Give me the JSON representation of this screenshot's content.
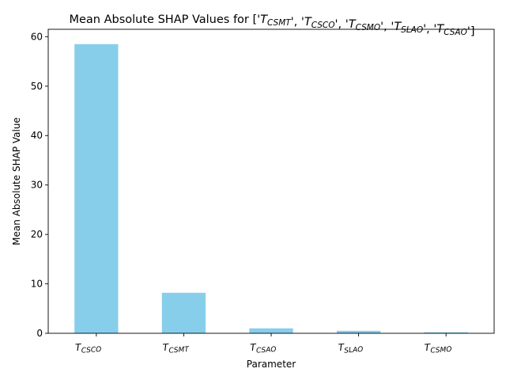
{
  "chart_data": {
    "type": "bar",
    "title": "Mean Absolute SHAP Values for ['T_CSMT', 'T_CSCO', 'T_CSMO', 'T_SLAO', 'T_CSAO']",
    "title_parts": [
      {
        "t": "Mean Absolute SHAP Values for ['"
      },
      {
        "t": "T",
        "it": true
      },
      {
        "t": "CSMT",
        "sub": true
      },
      {
        "t": "', '"
      },
      {
        "t": "T",
        "it": true
      },
      {
        "t": "CSCO",
        "sub": true
      },
      {
        "t": "', '"
      },
      {
        "t": "T",
        "it": true
      },
      {
        "t": "CSMO",
        "sub": true
      },
      {
        "t": "', '"
      },
      {
        "t": "T",
        "it": true
      },
      {
        "t": "SLAO",
        "sub": true
      },
      {
        "t": "', '"
      },
      {
        "t": "T",
        "it": true
      },
      {
        "t": "CSAO",
        "sub": true
      },
      {
        "t": "']"
      }
    ],
    "xlabel": "Parameter",
    "ylabel": "Mean Absolute SHAP Value",
    "categories": [
      {
        "main": "T",
        "sub": "CSCO"
      },
      {
        "main": "T",
        "sub": "CSMT"
      },
      {
        "main": "T",
        "sub": "CSAO"
      },
      {
        "main": "T",
        "sub": "SLAO"
      },
      {
        "main": "T",
        "sub": "CSMO"
      }
    ],
    "values": [
      58.5,
      8.2,
      1.0,
      0.5,
      0.2
    ],
    "ylim": [
      0,
      61.5
    ],
    "yticks": [
      0,
      10,
      20,
      30,
      40,
      50,
      60
    ],
    "bar_color": "#87CEEB",
    "grid": false,
    "legend": "none"
  }
}
